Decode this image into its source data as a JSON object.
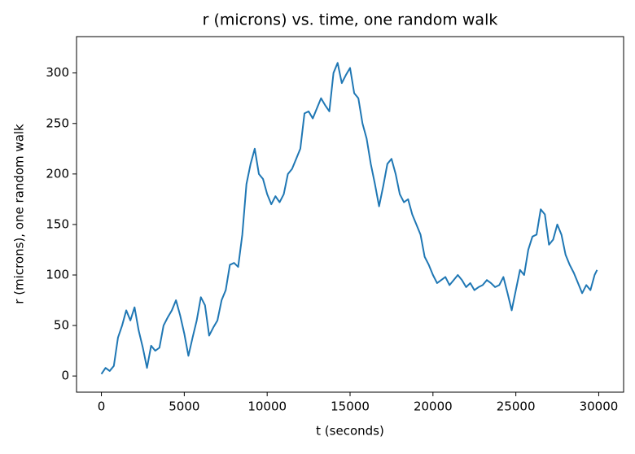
{
  "chart_data": {
    "type": "line",
    "title": "r (microns) vs. time, one random walk",
    "xlabel": "t (seconds)",
    "ylabel": "r (microns), one random walk",
    "x": [
      0,
      250,
      500,
      750,
      1000,
      1250,
      1500,
      1750,
      2000,
      2250,
      2500,
      2750,
      3000,
      3250,
      3500,
      3750,
      4000,
      4250,
      4500,
      4750,
      5000,
      5250,
      5500,
      5750,
      6000,
      6250,
      6500,
      6750,
      7000,
      7250,
      7500,
      7750,
      8000,
      8250,
      8500,
      8750,
      9000,
      9250,
      9500,
      9750,
      10000,
      10250,
      10500,
      10750,
      11000,
      11250,
      11500,
      11750,
      12000,
      12250,
      12500,
      12750,
      13000,
      13250,
      13500,
      13750,
      14000,
      14250,
      14500,
      14750,
      15000,
      15250,
      15500,
      15750,
      16000,
      16250,
      16500,
      16750,
      17000,
      17250,
      17500,
      17750,
      18000,
      18250,
      18500,
      18750,
      19000,
      19250,
      19500,
      19750,
      20000,
      20250,
      20500,
      20750,
      21000,
      21250,
      21500,
      21750,
      22000,
      22250,
      22500,
      22750,
      23000,
      23250,
      23500,
      23750,
      24000,
      24250,
      24500,
      24750,
      25000,
      25250,
      25500,
      25750,
      26000,
      26250,
      26500,
      26750,
      27000,
      27250,
      27500,
      27750,
      28000,
      28250,
      28500,
      28750,
      29000,
      29250,
      29500,
      29750,
      29900
    ],
    "series": [
      {
        "name": "r",
        "color": "#1f77b4",
        "values": [
          2,
          8,
          5,
          10,
          38,
          50,
          65,
          55,
          68,
          45,
          28,
          8,
          30,
          25,
          28,
          50,
          58,
          65,
          75,
          60,
          42,
          20,
          38,
          55,
          78,
          70,
          40,
          48,
          55,
          75,
          85,
          110,
          112,
          108,
          140,
          190,
          210,
          225,
          200,
          195,
          180,
          170,
          178,
          172,
          180,
          200,
          205,
          215,
          225,
          260,
          262,
          255,
          265,
          275,
          268,
          262,
          300,
          310,
          290,
          298,
          305,
          280,
          275,
          250,
          235,
          210,
          190,
          168,
          188,
          210,
          215,
          200,
          180,
          172,
          175,
          160,
          150,
          140,
          118,
          110,
          100,
          92,
          95,
          98,
          90,
          95,
          100,
          95,
          88,
          92,
          85,
          88,
          90,
          95,
          92,
          88,
          90,
          98,
          82,
          65,
          85,
          105,
          100,
          125,
          138,
          140,
          165,
          160,
          130,
          135,
          150,
          140,
          120,
          110,
          102,
          92,
          82,
          90,
          85,
          100,
          105
        ]
      }
    ],
    "xlim": [
      -1500,
      31500
    ],
    "ylim": [
      -16,
      336
    ],
    "xticks": [
      0,
      5000,
      10000,
      15000,
      20000,
      25000,
      30000
    ],
    "yticks": [
      0,
      50,
      100,
      150,
      200,
      250,
      300
    ]
  }
}
